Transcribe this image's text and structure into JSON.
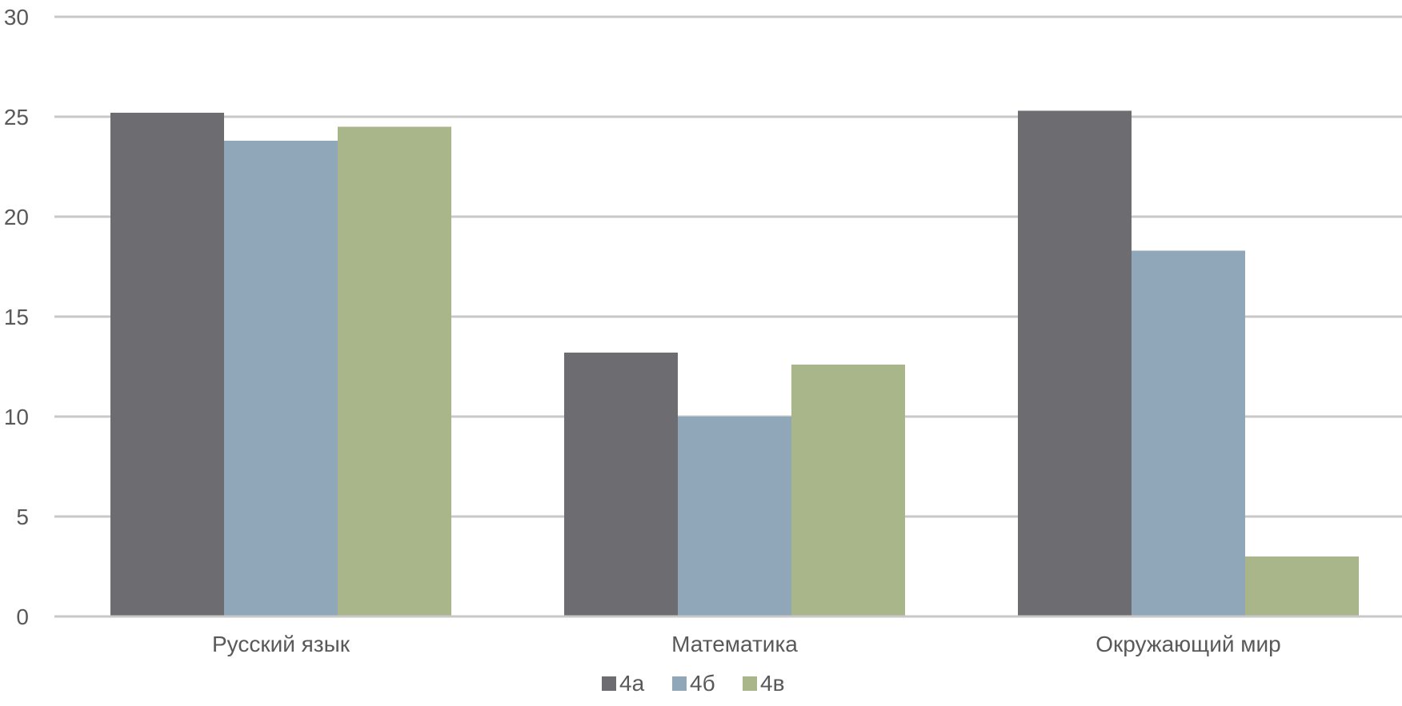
{
  "chart_data": {
    "type": "bar",
    "categories": [
      "Русский язык",
      "Математика",
      "Окружающий мир"
    ],
    "series": [
      {
        "name": "4а",
        "color": "#6d6c70",
        "values": [
          25.2,
          13.2,
          25.3
        ]
      },
      {
        "name": "4б",
        "color": "#8fa7b8",
        "values": [
          23.8,
          10.0,
          18.3
        ]
      },
      {
        "name": "4в",
        "color": "#a8b68a",
        "values": [
          24.5,
          12.6,
          3.0
        ]
      }
    ],
    "ylim": [
      0,
      30
    ],
    "yticks": [
      0,
      5,
      10,
      15,
      20,
      25,
      30
    ],
    "grid": true,
    "legend_position": "bottom",
    "title": "",
    "xlabel": "",
    "ylabel": ""
  }
}
